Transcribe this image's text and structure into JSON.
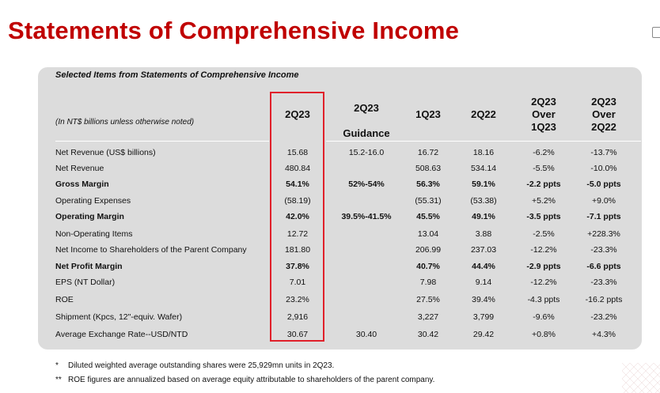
{
  "page": {
    "title": "Statements of Comprehensive Income"
  },
  "table": {
    "caption": "Selected Items from Statements of Comprehensive Income",
    "unit_note": "(In NT$ billions unless otherwise noted)",
    "columns": [
      {
        "key": "q2_23",
        "label_lines": [
          "2Q23"
        ]
      },
      {
        "key": "guidance",
        "label_lines": [
          "2Q23",
          "Guidance"
        ]
      },
      {
        "key": "q1_23",
        "label_lines": [
          "1Q23"
        ]
      },
      {
        "key": "q2_22",
        "label_lines": [
          "2Q22"
        ]
      },
      {
        "key": "qoq",
        "label_lines": [
          "2Q23",
          "Over",
          "1Q23"
        ]
      },
      {
        "key": "yoy",
        "label_lines": [
          "2Q23",
          "Over",
          "2Q22"
        ]
      }
    ],
    "rows": [
      {
        "label": "Net Revenue (US$ billions)",
        "bold": false,
        "values": [
          "15.68",
          "15.2-16.0",
          "16.72",
          "18.16",
          "-6.2%",
          "-13.7%"
        ]
      },
      {
        "label": "Net Revenue",
        "bold": false,
        "values": [
          "480.84",
          "",
          "508.63",
          "534.14",
          "-5.5%",
          "-10.0%"
        ]
      },
      {
        "label": "Gross Margin",
        "bold": true,
        "values": [
          "54.1%",
          "52%-54%",
          "56.3%",
          "59.1%",
          "-2.2 ppts",
          "-5.0 ppts"
        ]
      },
      {
        "label": "Operating Expenses",
        "bold": false,
        "values": [
          "(58.19)",
          "",
          "(55.31)",
          "(53.38)",
          "+5.2%",
          "+9.0%"
        ]
      },
      {
        "label": "Operating Margin",
        "bold": true,
        "values": [
          "42.0%",
          "39.5%-41.5%",
          "45.5%",
          "49.1%",
          "-3.5 ppts",
          "-7.1 ppts"
        ]
      },
      {
        "label": "Non-Operating Items",
        "bold": false,
        "values": [
          "12.72",
          "",
          "13.04",
          "3.88",
          "-2.5%",
          "+228.3%"
        ]
      },
      {
        "label": "Net Income to Shareholders of the Parent Company",
        "bold": false,
        "values": [
          "181.80",
          "",
          "206.99",
          "237.03",
          "-12.2%",
          "-23.3%"
        ]
      },
      {
        "label": "Net Profit Margin",
        "bold": true,
        "values": [
          "37.8%",
          "",
          "40.7%",
          "44.4%",
          "-2.9 ppts",
          "-6.6 ppts"
        ]
      },
      {
        "label": "EPS (NT Dollar)",
        "bold": false,
        "values": [
          "7.01",
          "",
          "7.98",
          "9.14",
          "-12.2%",
          "-23.3%"
        ]
      },
      {
        "label": "ROE",
        "bold": false,
        "values": [
          "23.2%",
          "",
          "27.5%",
          "39.4%",
          "-4.3 ppts",
          "-16.2 ppts"
        ]
      },
      {
        "label": "Shipment (Kpcs, 12\"-equiv. Wafer)",
        "bold": false,
        "values": [
          "2,916",
          "",
          "3,227",
          "3,799",
          "-9.6%",
          "-23.2%"
        ]
      },
      {
        "label": "Average Exchange Rate--USD/NTD",
        "bold": false,
        "values": [
          "30.67",
          "30.40",
          "30.42",
          "29.42",
          "+0.8%",
          "+4.3%"
        ]
      }
    ]
  },
  "footnotes": [
    {
      "mark": "*",
      "text": "Diluted weighted average outstanding shares were 25,929mn units in 2Q23."
    },
    {
      "mark": "**",
      "text": "ROE figures are annualized based on average equity attributable to shareholders of the parent company."
    }
  ],
  "colors": {
    "title": "#c00000",
    "panel": "#dcdcdc",
    "highlight": "#e0202a"
  }
}
